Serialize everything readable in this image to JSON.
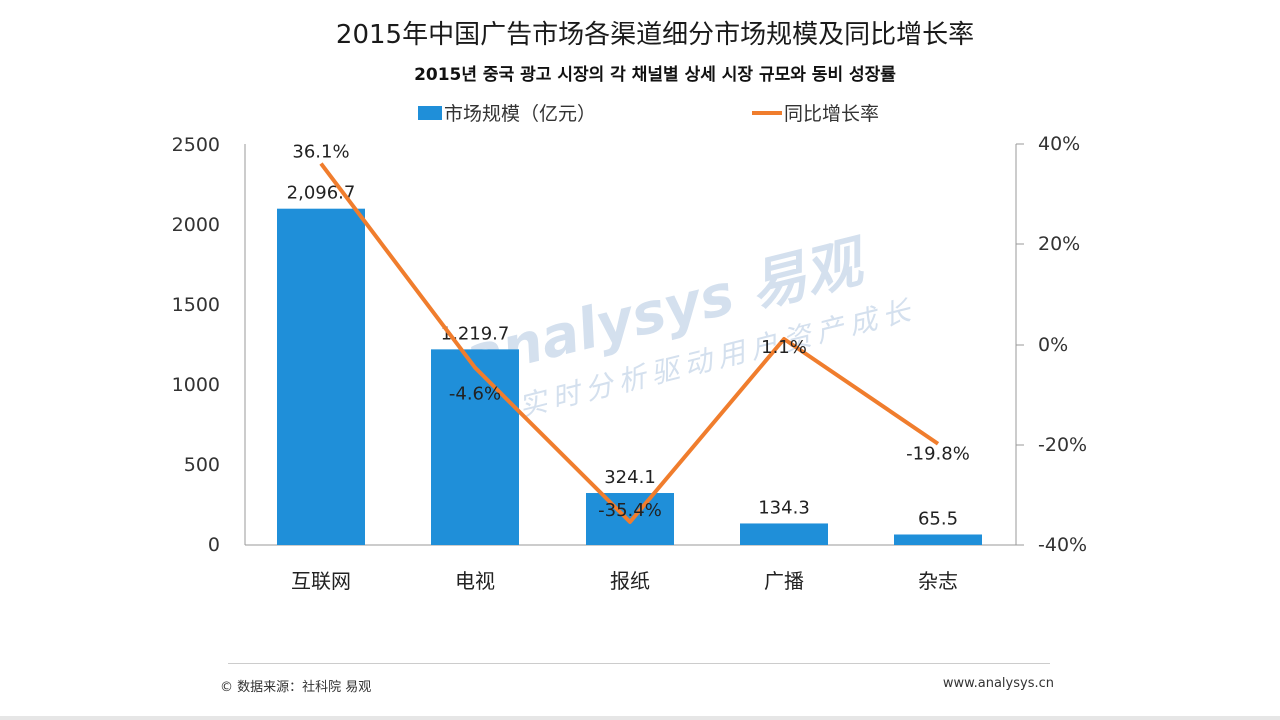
{
  "header": {
    "title": "2015年中国广告市场各渠道细分市场规模及同比增长率",
    "subtitle": "2015년 중국 광고 시장의 각 채널별 상세 시장 규모와 동비 성장률"
  },
  "footer": {
    "source": "© 数据来源：社科院 易观",
    "site": "www.analysys.cn"
  },
  "watermark": {
    "brand": "analysys 易观",
    "slogan": "实时分析驱动用户资产成长"
  },
  "colors": {
    "bar": "#1f8fd9",
    "line": "#f07d2d",
    "axis": "#999999"
  },
  "chart_data": {
    "type": "bar",
    "title": "2015年中国广告市场各渠道细分市场规模及同比增长率",
    "categories": [
      "互联网",
      "电视",
      "报纸",
      "广播",
      "杂志"
    ],
    "series": [
      {
        "name": "市场规模（亿元）",
        "type": "bar",
        "axis": "left",
        "values": [
          2096.7,
          1219.7,
          324.1,
          134.3,
          65.5
        ],
        "labels": [
          "2,096.7",
          "1,219.7",
          "324.1",
          "134.3",
          "65.5"
        ]
      },
      {
        "name": "同比增长率",
        "type": "line",
        "axis": "right",
        "values": [
          36.1,
          -4.6,
          -35.4,
          1.1,
          -19.8
        ],
        "labels": [
          "36.1%",
          "-4.6%",
          "-35.4%",
          "1.1%",
          "-19.8%"
        ]
      }
    ],
    "y_left": {
      "min": 0,
      "max": 2500,
      "ticks": [
        "0",
        "500",
        "1000",
        "1500",
        "2000",
        "2500"
      ]
    },
    "y_right": {
      "min": -40,
      "max": 40,
      "ticks": [
        "-40%",
        "-20%",
        "0%",
        "20%",
        "40%"
      ]
    },
    "legend_position": "top-center",
    "grid": false
  }
}
